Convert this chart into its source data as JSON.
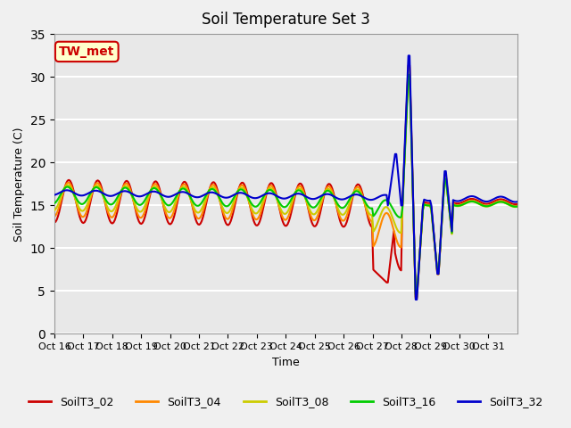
{
  "title": "Soil Temperature Set 3",
  "xlabel": "Time",
  "ylabel": "Soil Temperature (C)",
  "ylim": [
    0,
    35
  ],
  "xtick_labels": [
    "Oct 16",
    "Oct 17",
    "Oct 18",
    "Oct 19",
    "Oct 20",
    "Oct 21",
    "Oct 22",
    "Oct 23",
    "Oct 24",
    "Oct 25",
    "Oct 26",
    "Oct 27",
    "Oct 28",
    "Oct 29",
    "Oct 30",
    "Oct 31"
  ],
  "series_colors": {
    "SoilT3_02": "#cc0000",
    "SoilT3_04": "#ff8800",
    "SoilT3_08": "#cccc00",
    "SoilT3_16": "#00cc00",
    "SoilT3_32": "#0000cc"
  },
  "tw_met_label": "TW_met",
  "tw_met_color": "#cc0000",
  "tw_met_bg": "#ffffcc",
  "background_color": "#e8e8e8",
  "plot_bg_color": "#e8e8e8",
  "grid_color": "#ffffff"
}
